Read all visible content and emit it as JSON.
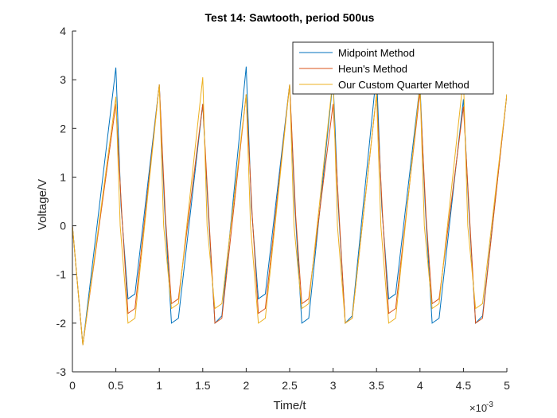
{
  "chart_data": {
    "type": "line",
    "title": "Test 14: Sawtooth, period 500us",
    "xlabel": "Time/t",
    "ylabel": "Voltage/V",
    "x_multiplier_label": "×10",
    "x_multiplier_exponent": "-3",
    "xlim": [
      0,
      5
    ],
    "ylim": [
      -3,
      4
    ],
    "xticks": [
      0,
      0.5,
      1,
      1.5,
      2,
      2.5,
      3,
      3.5,
      4,
      4.5,
      5
    ],
    "xtick_labels": [
      "0",
      "0.5",
      "1",
      "1.5",
      "2",
      "2.5",
      "3",
      "3.5",
      "4",
      "4.5",
      "5"
    ],
    "yticks": [
      -3,
      -2,
      -1,
      0,
      1,
      2,
      3,
      4
    ],
    "ytick_labels": [
      "-3",
      "-2",
      "-1",
      "0",
      "1",
      "2",
      "3",
      "4"
    ],
    "grid": false,
    "legend_position": "top-right",
    "series": [
      {
        "name": "Midpoint Method",
        "color": "#0072BD",
        "x": [
          0,
          0.12,
          0.5,
          0.56,
          0.64,
          0.72,
          1.0,
          1.06,
          1.14,
          1.22,
          1.5,
          1.56,
          1.64,
          1.72,
          2.0,
          2.06,
          2.14,
          2.22,
          2.5,
          2.56,
          2.64,
          2.72,
          3.0,
          3.06,
          3.14,
          3.22,
          3.5,
          3.56,
          3.64,
          3.72,
          4.0,
          4.06,
          4.14,
          4.22,
          4.5,
          4.56,
          4.64,
          4.72,
          5.0
        ],
        "y": [
          0,
          -2.45,
          3.25,
          0.4,
          -1.5,
          -1.4,
          2.9,
          0.4,
          -2.0,
          -1.9,
          2.5,
          0.4,
          -2.0,
          -1.85,
          3.27,
          0.4,
          -1.5,
          -1.4,
          2.9,
          0.4,
          -2.0,
          -1.9,
          3.0,
          0.4,
          -2.0,
          -1.85,
          3.15,
          0.4,
          -1.5,
          -1.4,
          2.9,
          0.4,
          -2.0,
          -1.9,
          2.6,
          0.4,
          -2.0,
          -1.85,
          2.7
        ]
      },
      {
        "name": "Heun's Method",
        "color": "#D95319",
        "x": [
          0,
          0.12,
          0.5,
          0.57,
          0.64,
          0.72,
          1.0,
          1.07,
          1.14,
          1.22,
          1.5,
          1.57,
          1.64,
          1.72,
          2.0,
          2.07,
          2.14,
          2.22,
          2.5,
          2.57,
          2.64,
          2.72,
          3.0,
          3.07,
          3.14,
          3.22,
          3.5,
          3.57,
          3.64,
          3.72,
          4.0,
          4.07,
          4.14,
          4.22,
          4.5,
          4.57,
          4.64,
          4.72,
          5.0
        ],
        "y": [
          0,
          -2.45,
          2.5,
          0.2,
          -1.8,
          -1.7,
          2.9,
          0.2,
          -1.6,
          -1.5,
          2.5,
          0.2,
          -2.0,
          -1.9,
          2.7,
          0.2,
          -1.8,
          -1.7,
          2.9,
          0.2,
          -1.6,
          -1.5,
          2.5,
          0.2,
          -2.0,
          -1.9,
          2.7,
          0.2,
          -1.8,
          -1.7,
          2.75,
          0.2,
          -1.6,
          -1.5,
          2.45,
          0.2,
          -2.0,
          -1.9,
          2.7
        ]
      },
      {
        "name": "Our Custom Quarter Method",
        "color": "#EDB120",
        "x": [
          0,
          0.12,
          0.5,
          0.55,
          0.64,
          0.72,
          1.0,
          1.05,
          1.14,
          1.22,
          1.5,
          1.55,
          1.64,
          1.72,
          2.0,
          2.05,
          2.14,
          2.22,
          2.5,
          2.55,
          2.64,
          2.72,
          3.0,
          3.05,
          3.14,
          3.22,
          3.5,
          3.55,
          3.64,
          3.72,
          4.0,
          4.05,
          4.14,
          4.22,
          4.5,
          4.55,
          4.64,
          4.72,
          5.0
        ],
        "y": [
          0,
          -2.45,
          2.65,
          0.0,
          -2.0,
          -1.9,
          2.9,
          0.0,
          -1.7,
          -1.6,
          3.05,
          0.0,
          -1.7,
          -1.6,
          2.7,
          0.0,
          -2.0,
          -1.9,
          2.9,
          0.0,
          -1.7,
          -1.6,
          3.05,
          0.0,
          -2.0,
          -1.9,
          2.7,
          0.0,
          -2.0,
          -1.9,
          2.9,
          0.0,
          -1.7,
          -1.6,
          3.05,
          0.0,
          -1.7,
          -1.6,
          2.7
        ]
      }
    ]
  }
}
